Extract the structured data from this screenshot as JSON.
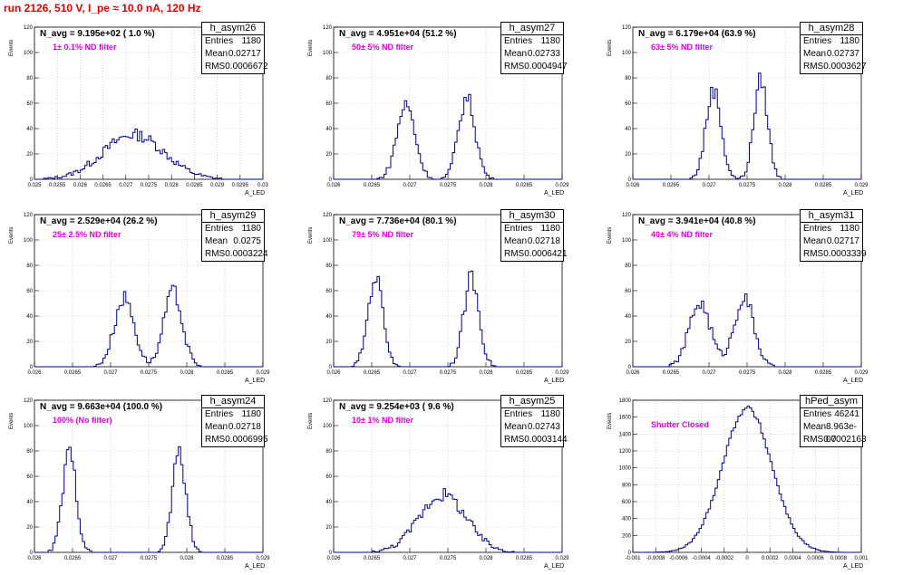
{
  "header": {
    "title": "run 2126,   510 V, I_pe ≈ 10.0 nA, 120 Hz"
  },
  "chart_data": [
    {
      "type": "bar",
      "stat_name": "h_asym26",
      "navg": "N_avg = 9.195e+02 ( 1.0 %)",
      "filter": "1± 0.1% ND filter",
      "stats": {
        "entries": "1180",
        "mean": "0.02717",
        "rms": "0.0006672"
      },
      "xlabel": "A_LED",
      "ylabel": "Events",
      "xlim": [
        0.025,
        0.03
      ],
      "ylim": [
        0,
        120
      ],
      "xticks": [
        "0.025",
        "0.0255",
        "0.026",
        "0.0265",
        "0.027",
        "0.0275",
        "0.028",
        "0.0285",
        "0.029",
        "0.0295",
        "0.03"
      ],
      "yticks": [
        "0",
        "20",
        "40",
        "60",
        "80",
        "100",
        "120"
      ],
      "curve": [
        {
          "mu": 0.02717,
          "sigma": 0.0006672,
          "n": 1180,
          "w": 1.0
        }
      ],
      "bin_width": 5e-05
    },
    {
      "type": "bar",
      "stat_name": "h_asym27",
      "navg": "N_avg = 4.951e+04 (51.2 %)",
      "filter": "50± 5% ND filter",
      "stats": {
        "entries": "1180",
        "mean": "0.02733",
        "rms": "0.0004947"
      },
      "xlabel": "A_LED",
      "ylabel": "Events",
      "xlim": [
        0.026,
        0.029
      ],
      "ylim": [
        0,
        120
      ],
      "xticks": [
        "0.026",
        "0.0265",
        "0.027",
        "0.0275",
        "0.028",
        "0.0285",
        "0.029"
      ],
      "yticks": [
        "0",
        "20",
        "40",
        "60",
        "80",
        "100",
        "120"
      ],
      "curve": [
        {
          "mu": 0.02695,
          "sigma": 0.00012,
          "n": 590,
          "w": 1.0
        },
        {
          "mu": 0.02775,
          "sigma": 0.00011,
          "n": 590,
          "w": 1.0
        }
      ],
      "bin_width": 3e-05
    },
    {
      "type": "bar",
      "stat_name": "h_asym28",
      "navg": "N_avg = 6.179e+04 (63.9 %)",
      "filter": "63± 5% ND filter",
      "stats": {
        "entries": "1180",
        "mean": "0.02737",
        "rms": "0.0003627"
      },
      "xlabel": "A_LED",
      "ylabel": "Events",
      "xlim": [
        0.026,
        0.029
      ],
      "ylim": [
        0,
        120
      ],
      "xticks": [
        "0.026",
        "0.0265",
        "0.027",
        "0.0275",
        "0.028",
        "0.0285",
        "0.029"
      ],
      "yticks": [
        "0",
        "20",
        "40",
        "60",
        "80",
        "100",
        "120"
      ],
      "curve": [
        {
          "mu": 0.02706,
          "sigma": 0.0001,
          "n": 590,
          "w": 1.0
        },
        {
          "mu": 0.02768,
          "sigma": 9e-05,
          "n": 590,
          "w": 1.0
        }
      ],
      "bin_width": 3e-05
    },
    {
      "type": "bar",
      "stat_name": "h_asym29",
      "navg": "N_avg = 2.529e+04 (26.2 %)",
      "filter": "25± 2.5% ND filter",
      "stats": {
        "entries": "1180",
        "mean": "0.0275",
        "rms": "0.0003224"
      },
      "xlabel": "A_LED",
      "ylabel": "Events",
      "xlim": [
        0.026,
        0.029
      ],
      "ylim": [
        0,
        120
      ],
      "xticks": [
        "0.026",
        "0.0265",
        "0.027",
        "0.0275",
        "0.028",
        "0.0285",
        "0.029"
      ],
      "yticks": [
        "0",
        "20",
        "40",
        "60",
        "80",
        "100",
        "120"
      ],
      "curve": [
        {
          "mu": 0.02718,
          "sigma": 0.00013,
          "n": 590,
          "w": 1.0
        },
        {
          "mu": 0.02782,
          "sigma": 0.00012,
          "n": 590,
          "w": 1.0
        }
      ],
      "bin_width": 3e-05
    },
    {
      "type": "bar",
      "stat_name": "h_asym30",
      "navg": "N_avg = 7.736e+04 (80.1 %)",
      "filter": "79± 5% ND filter",
      "stats": {
        "entries": "1180",
        "mean": "0.02718",
        "rms": "0.0006421"
      },
      "xlabel": "A_LED",
      "ylabel": "Events",
      "xlim": [
        0.026,
        0.029
      ],
      "ylim": [
        0,
        120
      ],
      "xticks": [
        "0.026",
        "0.0265",
        "0.027",
        "0.0275",
        "0.028",
        "0.0285",
        "0.029"
      ],
      "yticks": [
        "0",
        "20",
        "40",
        "60",
        "80",
        "100",
        "120"
      ],
      "curve": [
        {
          "mu": 0.02655,
          "sigma": 0.0001,
          "n": 590,
          "w": 1.0
        },
        {
          "mu": 0.02781,
          "sigma": 0.0001,
          "n": 590,
          "w": 1.0
        }
      ],
      "bin_width": 3e-05
    },
    {
      "type": "bar",
      "stat_name": "h_asym31",
      "navg": "N_avg = 3.941e+04 (40.8 %)",
      "filter": "40± 4% ND filter",
      "stats": {
        "entries": "1180",
        "mean": "0.02717",
        "rms": "0.0003339"
      },
      "xlabel": "A_LED",
      "ylabel": "Events",
      "xlim": [
        0.026,
        0.029
      ],
      "ylim": [
        0,
        120
      ],
      "xticks": [
        "0.026",
        "0.0265",
        "0.027",
        "0.0275",
        "0.028",
        "0.0285",
        "0.029"
      ],
      "yticks": [
        "0",
        "20",
        "40",
        "60",
        "80",
        "100",
        "120"
      ],
      "curve": [
        {
          "mu": 0.02688,
          "sigma": 0.00014,
          "n": 590,
          "w": 1.0
        },
        {
          "mu": 0.02746,
          "sigma": 0.00013,
          "n": 590,
          "w": 1.0
        }
      ],
      "bin_width": 3e-05
    },
    {
      "type": "bar",
      "stat_name": "h_asym24",
      "navg": "N_avg = 9.663e+04 (100.0 %)",
      "filter": "100% (No filter)",
      "stats": {
        "entries": "1180",
        "mean": "0.02718",
        "rms": "0.0006995"
      },
      "xlabel": "A_LED",
      "ylabel": "Events",
      "xlim": [
        0.026,
        0.029
      ],
      "ylim": [
        0,
        120
      ],
      "xticks": [
        "0.026",
        "0.0265",
        "0.027",
        "0.0275",
        "0.028",
        "0.0285",
        "0.029"
      ],
      "yticks": [
        "0",
        "20",
        "40",
        "60",
        "80",
        "100",
        "120"
      ],
      "curve": [
        {
          "mu": 0.02646,
          "sigma": 9e-05,
          "n": 590,
          "w": 1.0
        },
        {
          "mu": 0.0279,
          "sigma": 9e-05,
          "n": 590,
          "w": 1.0
        }
      ],
      "bin_width": 3e-05
    },
    {
      "type": "bar",
      "stat_name": "h_asym25",
      "navg": "N_avg = 9.254e+03 ( 9.6 %)",
      "filter": "10± 1% ND filter",
      "stats": {
        "entries": "1180",
        "mean": "0.02743",
        "rms": "0.0003144"
      },
      "xlabel": "A_LED",
      "ylabel": "Events",
      "xlim": [
        0.026,
        0.029
      ],
      "ylim": [
        0,
        120
      ],
      "xticks": [
        "0.026",
        "0.0265",
        "0.027",
        "0.0275",
        "0.028",
        "0.0285",
        "0.029"
      ],
      "yticks": [
        "0",
        "20",
        "40",
        "60",
        "80",
        "100",
        "120"
      ],
      "curve": [
        {
          "mu": 0.02743,
          "sigma": 0.00031,
          "n": 1180,
          "w": 1.0
        }
      ],
      "bin_width": 3e-05
    },
    {
      "type": "bar",
      "stat_name": "hPed_asym",
      "navg": "",
      "filter": "Shutter Closed",
      "stats": {
        "entries": "46241",
        "mean": "8.963e-07",
        "rms": "0.0002163"
      },
      "xlabel": "A_LED",
      "ylabel": "Events",
      "xlim": [
        -0.001,
        0.001
      ],
      "ylim": [
        0,
        1800
      ],
      "xticks": [
        "-0.001",
        "-0.0008",
        "-0.0006",
        "-0.0004",
        "-0.0002",
        "0",
        "0.0002",
        "0.0004",
        "0.0006",
        "0.0008",
        "0.001"
      ],
      "yticks": [
        "0",
        "200",
        "400",
        "600",
        "800",
        "1000",
        "1200",
        "1400",
        "1600",
        "1800"
      ],
      "curve": [
        {
          "mu": 9e-07,
          "sigma": 0.0002163,
          "n": 46241,
          "w": 1.0
        }
      ],
      "bin_width": 2e-05
    }
  ]
}
